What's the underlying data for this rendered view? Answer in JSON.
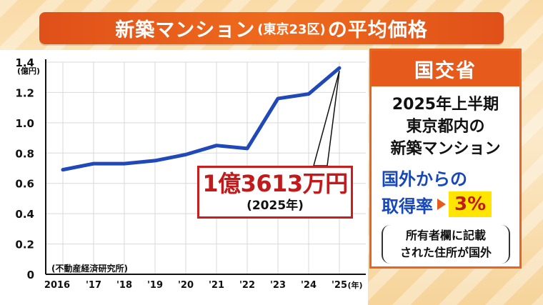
{
  "title": {
    "main_prefix": "新築マンション",
    "sub": "(東京23区)",
    "main_suffix": "の平均価格"
  },
  "chart_data": {
    "type": "line",
    "y_unit": "(億円)",
    "x_unit": "(年)",
    "categories": [
      "2016",
      "'17",
      "'18",
      "'19",
      "'20",
      "'21",
      "'22",
      "'23",
      "'24",
      "'25"
    ],
    "y_ticks": [
      "0",
      "0.2",
      "0.4",
      "0.6",
      "0.8",
      "1.0",
      "1.2",
      "1.4"
    ],
    "ylim": [
      0,
      1.4
    ],
    "series": [
      {
        "values": [
          0.69,
          0.73,
          0.73,
          0.75,
          0.79,
          0.85,
          0.83,
          1.16,
          1.19,
          1.3613
        ]
      }
    ],
    "series_color": "#1f48b8",
    "grid": true,
    "source": "(不動産経済研究所)",
    "callout": {
      "amount": "1億3613万円",
      "year": "(2025年)",
      "color": "#c21a1a"
    }
  },
  "side_panel": {
    "header": "国交省",
    "line1": "2025年上半期",
    "line2": "東京都内の",
    "line3": "新築マンション",
    "rate_label1": "国外からの",
    "rate_label2": "取得率",
    "rate_value": "3%",
    "note_line1": "所有者欄に記載",
    "note_line2": "された住所が国外",
    "accent_color": "#e65a1c",
    "label_color": "#1747b8"
  }
}
